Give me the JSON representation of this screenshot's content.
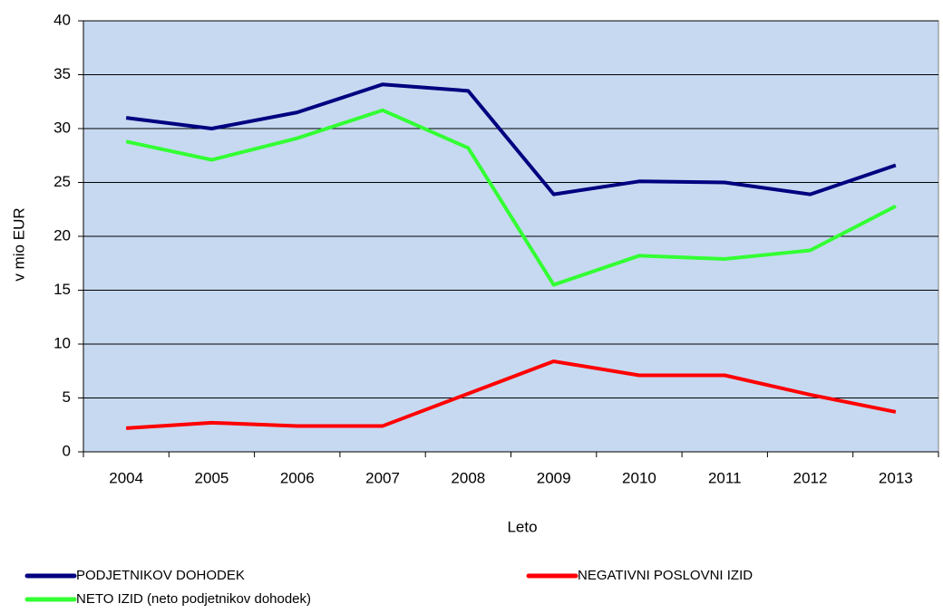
{
  "chart_data": {
    "type": "line",
    "x_label": "Leto",
    "y_label": "v mio EUR",
    "categories": [
      "2004",
      "2005",
      "2006",
      "2007",
      "2008",
      "2009",
      "2010",
      "2011",
      "2012",
      "2013"
    ],
    "series": [
      {
        "name": "PODJETNIKOV DOHODEK",
        "color": "#000080",
        "values": [
          31.0,
          30.0,
          31.5,
          34.1,
          33.5,
          23.9,
          25.1,
          25.0,
          23.9,
          26.6
        ]
      },
      {
        "name": "NEGATIVNI POSLOVNI IZID",
        "color": "#ff0000",
        "values": [
          2.2,
          2.7,
          2.4,
          2.4,
          5.4,
          8.4,
          7.1,
          7.1,
          5.3,
          3.7
        ]
      },
      {
        "name": "NETO IZID (neto podjetnikov dohodek)",
        "color": "#33ff33",
        "values": [
          28.8,
          27.1,
          29.1,
          31.7,
          28.2,
          15.5,
          18.2,
          17.9,
          18.7,
          22.8
        ]
      }
    ],
    "ylim": [
      0,
      40
    ],
    "yticks": [
      0,
      5,
      10,
      15,
      20,
      25,
      30,
      35,
      40
    ],
    "grid": true,
    "legend": "bottom"
  }
}
